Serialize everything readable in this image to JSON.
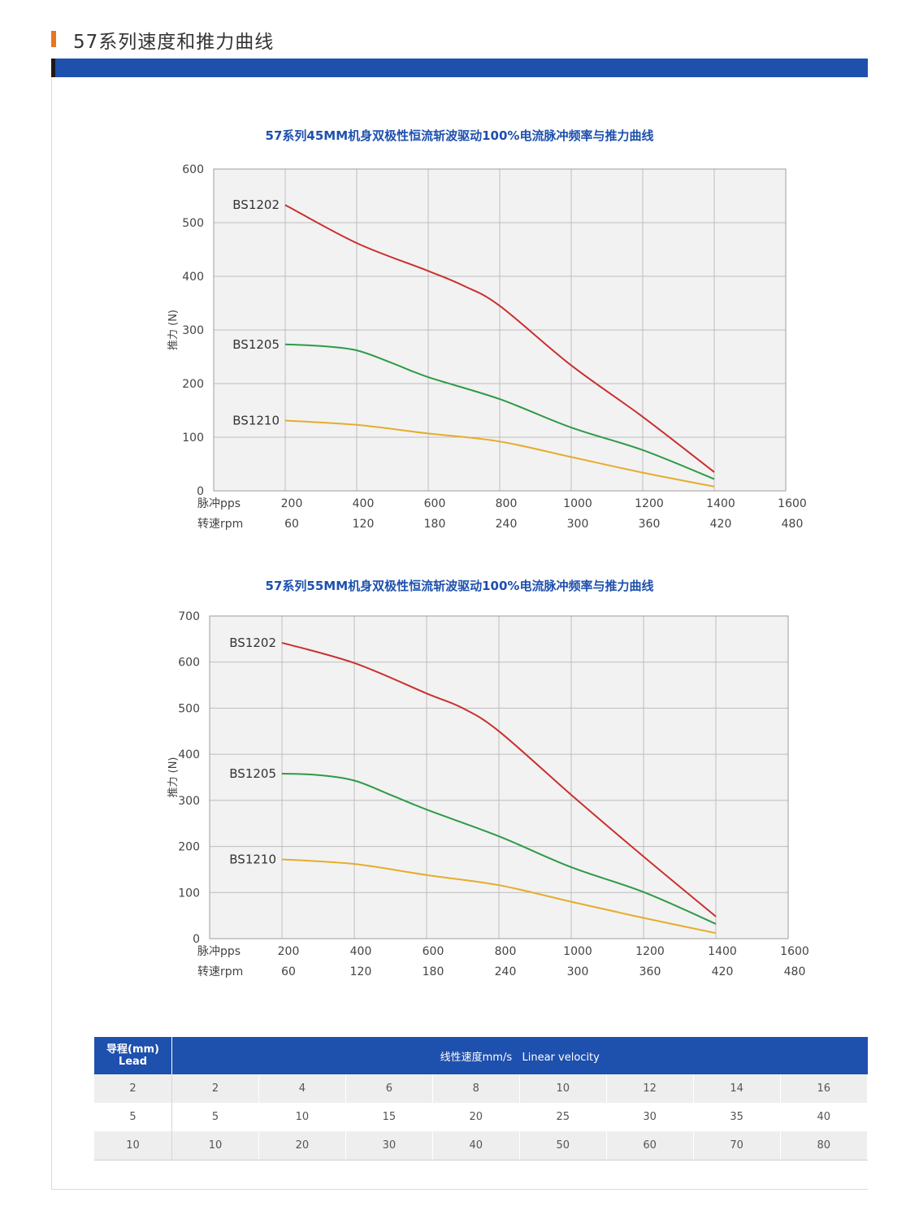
{
  "page": {
    "title": "57系列速度和推力曲线",
    "colors": {
      "accent": "#e8761e",
      "brand_blue": "#1e50ad"
    }
  },
  "chart_data": [
    {
      "type": "line",
      "title": "57系列45MM机身双极性恒流斩波驱动100%电流脉冲频率与推力曲线",
      "ylabel": "推力 (N)",
      "ylim": [
        0,
        600
      ],
      "yticks": [
        0,
        100,
        200,
        300,
        400,
        500,
        600
      ],
      "xlim": [
        0,
        1600
      ],
      "x_rows": [
        {
          "label": "脉冲pps",
          "ticks": [
            200,
            400,
            600,
            800,
            1000,
            1200,
            1400,
            1600
          ]
        },
        {
          "label": "转速rpm",
          "ticks": [
            60,
            120,
            180,
            240,
            300,
            360,
            420,
            480
          ]
        }
      ],
      "grid": true,
      "series": [
        {
          "name": "BS1202",
          "color": "#c8312e",
          "points": [
            [
              200,
              533
            ],
            [
              400,
              462
            ],
            [
              600,
              410
            ],
            [
              700,
              382
            ],
            [
              800,
              345
            ],
            [
              1000,
              234
            ],
            [
              1200,
              138
            ],
            [
              1400,
              35
            ]
          ]
        },
        {
          "name": "BS1205",
          "color": "#2e9a48",
          "points": [
            [
              200,
              273
            ],
            [
              300,
              270
            ],
            [
              400,
              262
            ],
            [
              500,
              238
            ],
            [
              600,
              212
            ],
            [
              800,
              171
            ],
            [
              1000,
              118
            ],
            [
              1200,
              76
            ],
            [
              1400,
              22
            ]
          ]
        },
        {
          "name": "BS1210",
          "color": "#e6ac2c",
          "points": [
            [
              200,
              131
            ],
            [
              400,
              123
            ],
            [
              600,
              107
            ],
            [
              800,
              92
            ],
            [
              1000,
              63
            ],
            [
              1200,
              34
            ],
            [
              1400,
              8
            ]
          ]
        }
      ]
    },
    {
      "type": "line",
      "title": "57系列55MM机身双极性恒流斩波驱动100%电流脉冲频率与推力曲线",
      "ylabel": "推力 (N)",
      "ylim": [
        0,
        700
      ],
      "yticks": [
        0,
        100,
        200,
        300,
        400,
        500,
        600,
        700
      ],
      "xlim": [
        0,
        1600
      ],
      "x_rows": [
        {
          "label": "脉冲pps",
          "ticks": [
            200,
            400,
            600,
            800,
            1000,
            1200,
            1400,
            1600
          ]
        },
        {
          "label": "转速rpm",
          "ticks": [
            60,
            120,
            180,
            240,
            300,
            360,
            420,
            480
          ]
        }
      ],
      "grid": true,
      "series": [
        {
          "name": "BS1202",
          "color": "#c8312e",
          "points": [
            [
              200,
              642
            ],
            [
              400,
              598
            ],
            [
              600,
              532
            ],
            [
              700,
              500
            ],
            [
              800,
              450
            ],
            [
              1000,
              312
            ],
            [
              1200,
              178
            ],
            [
              1400,
              48
            ]
          ]
        },
        {
          "name": "BS1205",
          "color": "#2e9a48",
          "points": [
            [
              200,
              358
            ],
            [
              300,
              355
            ],
            [
              400,
              343
            ],
            [
              500,
              312
            ],
            [
              600,
              280
            ],
            [
              800,
              222
            ],
            [
              1000,
              155
            ],
            [
              1200,
              101
            ],
            [
              1400,
              32
            ]
          ]
        },
        {
          "name": "BS1210",
          "color": "#e6ac2c",
          "points": [
            [
              200,
              172
            ],
            [
              400,
              162
            ],
            [
              600,
              138
            ],
            [
              800,
              116
            ],
            [
              1000,
              80
            ],
            [
              1200,
              45
            ],
            [
              1400,
              12
            ]
          ]
        }
      ]
    }
  ],
  "lead_table": {
    "head_lead_cn": "导程(mm)",
    "head_lead_en": "Lead",
    "head_velocity": "线性速度mm/s   Linear velocity",
    "rows": [
      {
        "lead": "2",
        "values": [
          "2",
          "4",
          "6",
          "8",
          "10",
          "12",
          "14",
          "16"
        ]
      },
      {
        "lead": "5",
        "values": [
          "5",
          "10",
          "15",
          "20",
          "25",
          "30",
          "35",
          "40"
        ]
      },
      {
        "lead": "10",
        "values": [
          "10",
          "20",
          "30",
          "40",
          "50",
          "60",
          "70",
          "80"
        ]
      }
    ]
  }
}
